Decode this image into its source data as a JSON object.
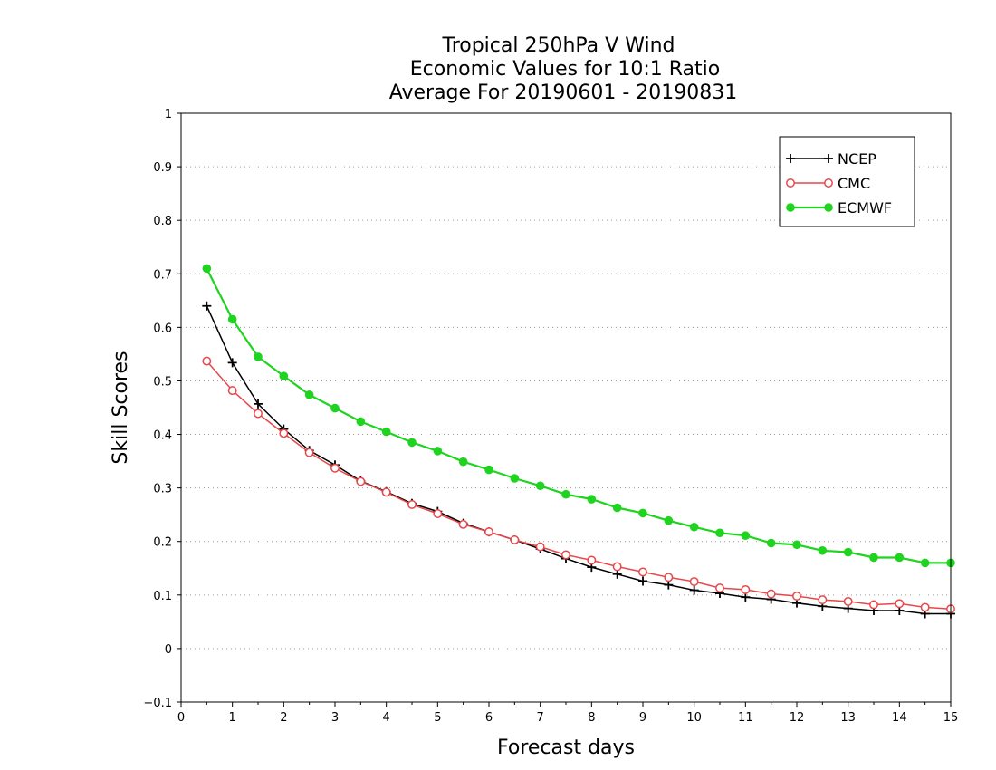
{
  "chart_data": {
    "type": "line",
    "title": [
      "Tropical 250hPa V Wind",
      "Economic Values for 10:1 Ratio",
      "Average For 20190601 - 20190831"
    ],
    "xlabel": "Forecast days",
    "ylabel": "Skill Scores",
    "xlim": [
      0,
      15
    ],
    "ylim": [
      -0.1,
      1
    ],
    "xticks": [
      0,
      1,
      2,
      3,
      4,
      5,
      6,
      7,
      8,
      9,
      10,
      11,
      12,
      13,
      14,
      15
    ],
    "yticks": [
      -0.1,
      0,
      0.1,
      0.2,
      0.3,
      0.4,
      0.5,
      0.6,
      0.7,
      0.8,
      0.9,
      1
    ],
    "ytick_labels": [
      "−0.1",
      "0",
      "0.1",
      "0.2",
      "0.3",
      "0.4",
      "0.5",
      "0.6",
      "0.7",
      "0.8",
      "0.9",
      "1"
    ],
    "grid": "horizontal-dotted",
    "legend_position": "top-right",
    "x": [
      0.5,
      1,
      1.5,
      2,
      2.5,
      3,
      3.5,
      4,
      4.5,
      5,
      5.5,
      6,
      6.5,
      7,
      7.5,
      8,
      8.5,
      9,
      9.5,
      10,
      10.5,
      11,
      11.5,
      12,
      12.5,
      13,
      13.5,
      14,
      14.5,
      15
    ],
    "series": [
      {
        "name": "NCEP",
        "color": "#000000",
        "marker": "plus",
        "values": [
          0.64,
          0.534,
          0.457,
          0.41,
          0.37,
          0.343,
          0.313,
          0.293,
          0.271,
          0.256,
          0.234,
          0.218,
          0.203,
          0.186,
          0.168,
          0.152,
          0.139,
          0.126,
          0.119,
          0.109,
          0.103,
          0.096,
          0.092,
          0.085,
          0.079,
          0.075,
          0.071,
          0.071,
          0.065,
          0.065
        ]
      },
      {
        "name": "CMC",
        "color": "#e8474a",
        "marker": "open-circle",
        "values": [
          0.537,
          0.482,
          0.439,
          0.402,
          0.366,
          0.337,
          0.312,
          0.292,
          0.269,
          0.252,
          0.232,
          0.218,
          0.203,
          0.19,
          0.175,
          0.165,
          0.153,
          0.143,
          0.133,
          0.125,
          0.113,
          0.11,
          0.102,
          0.098,
          0.091,
          0.088,
          0.082,
          0.084,
          0.077,
          0.074
        ]
      },
      {
        "name": "ECMWF",
        "color": "#1ed41e",
        "marker": "filled-circle",
        "values": [
          0.71,
          0.615,
          0.545,
          0.509,
          0.474,
          0.449,
          0.424,
          0.405,
          0.385,
          0.369,
          0.349,
          0.334,
          0.318,
          0.304,
          0.288,
          0.279,
          0.263,
          0.253,
          0.239,
          0.227,
          0.216,
          0.211,
          0.197,
          0.194,
          0.183,
          0.18,
          0.17,
          0.17,
          0.16,
          0.16
        ]
      }
    ]
  }
}
